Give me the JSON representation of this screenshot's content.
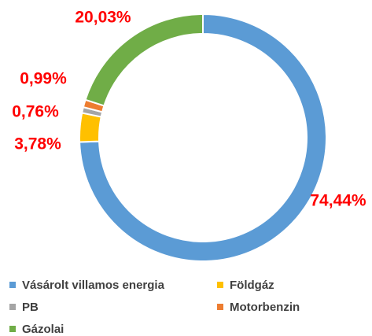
{
  "chart_data": {
    "type": "pie",
    "categories": [
      "Vásárolt villamos energia",
      "Földgáz",
      "PB",
      "Motorbenzin",
      "Gázolai"
    ],
    "values": [
      74.44,
      3.78,
      0.76,
      0.99,
      20.03
    ],
    "value_labels": [
      "74,44%",
      "3,78%",
      "0,76%",
      "0,99%",
      "20,03%"
    ],
    "colors": [
      "#5b9bd5",
      "#ffc000",
      "#a5a5a5",
      "#ed7d31",
      "#70ad47"
    ],
    "donut": true,
    "legend": "bottom"
  }
}
